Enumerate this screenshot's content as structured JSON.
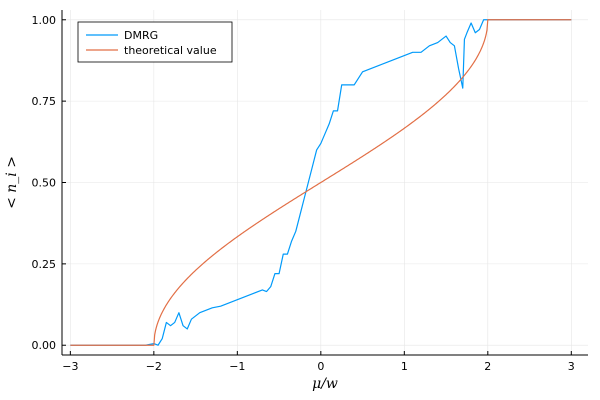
{
  "chart_data": {
    "type": "line",
    "xlabel": "μ/w",
    "ylabel": "< n_i >",
    "xlim": [
      -3.1,
      3.2
    ],
    "ylim": [
      -0.03,
      1.03
    ],
    "xticks": [
      -3,
      -2,
      -1,
      0,
      1,
      2,
      3
    ],
    "xtick_labels": [
      "−3",
      "−2",
      "−1",
      "0",
      "1",
      "2",
      "3"
    ],
    "yticks": [
      0,
      0.25,
      0.5,
      0.75,
      1.0
    ],
    "ytick_labels": [
      "0.00",
      "0.25",
      "0.50",
      "0.75",
      "1.00"
    ],
    "grid": true,
    "legend_position": "top-left",
    "series": [
      {
        "name": "DMRG",
        "color": "#009AFA",
        "x": [
          -3,
          -2.5,
          -2.1,
          -2.0,
          -1.95,
          -1.9,
          -1.85,
          -1.8,
          -1.75,
          -1.7,
          -1.65,
          -1.6,
          -1.55,
          -1.5,
          -1.45,
          -1.4,
          -1.3,
          -1.2,
          -1.1,
          -1.0,
          -0.9,
          -0.8,
          -0.7,
          -0.65,
          -0.6,
          -0.55,
          -0.5,
          -0.45,
          -0.4,
          -0.35,
          -0.3,
          -0.25,
          -0.2,
          -0.15,
          -0.1,
          -0.05,
          0.0,
          0.05,
          0.1,
          0.15,
          0.2,
          0.25,
          0.3,
          0.35,
          0.4,
          0.5,
          0.6,
          0.7,
          0.8,
          0.9,
          1.0,
          1.1,
          1.2,
          1.3,
          1.4,
          1.5,
          1.55,
          1.6,
          1.65,
          1.7,
          1.72,
          1.75,
          1.8,
          1.85,
          1.9,
          1.95,
          2.0,
          2.05,
          2.1,
          2.5,
          3
        ],
        "y": [
          0,
          0,
          0,
          0.005,
          0.0,
          0.02,
          0.07,
          0.06,
          0.07,
          0.1,
          0.06,
          0.05,
          0.08,
          0.09,
          0.1,
          0.105,
          0.115,
          0.12,
          0.13,
          0.14,
          0.15,
          0.16,
          0.17,
          0.165,
          0.18,
          0.22,
          0.22,
          0.28,
          0.28,
          0.32,
          0.35,
          0.4,
          0.45,
          0.5,
          0.55,
          0.6,
          0.62,
          0.65,
          0.68,
          0.72,
          0.72,
          0.8,
          0.8,
          0.8,
          0.8,
          0.84,
          0.85,
          0.86,
          0.87,
          0.88,
          0.89,
          0.9,
          0.9,
          0.92,
          0.93,
          0.95,
          0.93,
          0.92,
          0.85,
          0.79,
          0.94,
          0.96,
          0.99,
          0.96,
          0.97,
          1.0,
          1.0,
          1.0,
          1.0,
          1.0,
          1.0
        ]
      },
      {
        "name": "theoretical value",
        "color": "#E26F46",
        "formula": "theoretical"
      }
    ]
  }
}
